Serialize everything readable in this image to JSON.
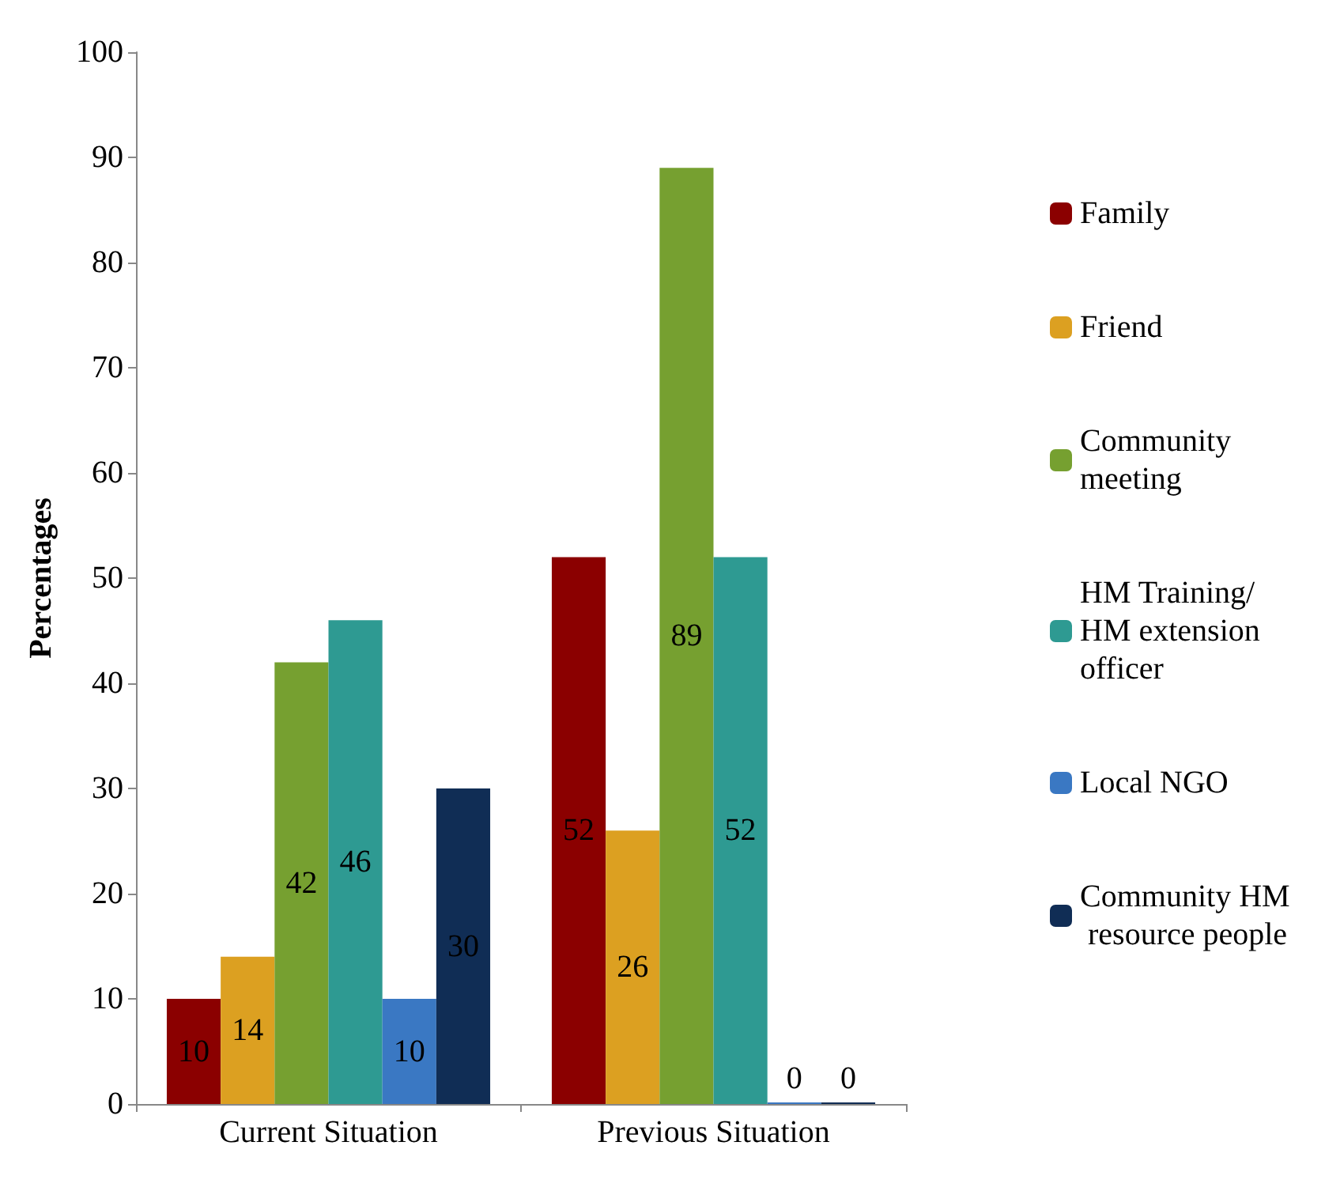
{
  "chart_data": {
    "type": "bar",
    "ylabel": "Percentages",
    "categories": [
      "Current Situation",
      "Previous Situation"
    ],
    "series": [
      {
        "name": "Family",
        "color": "#8b0000",
        "values": [
          10,
          52
        ]
      },
      {
        "name": "Friend",
        "color": "#dca021",
        "values": [
          14,
          26
        ]
      },
      {
        "name": "Community meeting",
        "color": "#76a030",
        "values": [
          42,
          89
        ]
      },
      {
        "name": "HM Training/ HM extension officer",
        "color": "#2e9a92",
        "values": [
          46,
          52
        ]
      },
      {
        "name": "Local NGO",
        "color": "#3a78c3",
        "values": [
          10,
          0
        ]
      },
      {
        "name": "Community HM resource people",
        "color": "#102d55",
        "values": [
          30,
          0
        ]
      }
    ],
    "ylim": [
      0,
      100
    ],
    "yticks": [
      0,
      10,
      20,
      30,
      40,
      50,
      60,
      70,
      80,
      90,
      100
    ],
    "grid": false,
    "legend": "right",
    "data_labels": true
  }
}
